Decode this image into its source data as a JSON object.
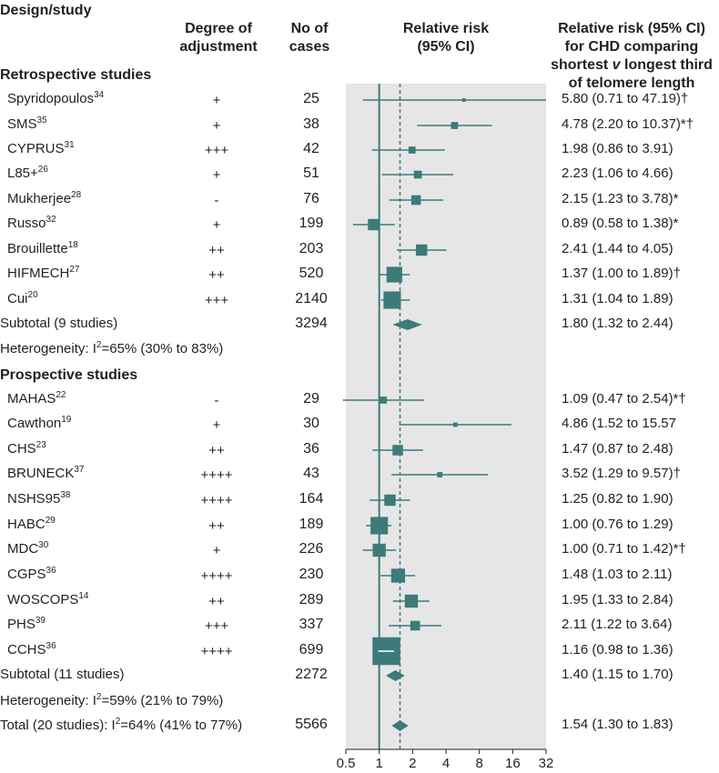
{
  "headers": {
    "design": "Design/study",
    "adjustment": "Degree of\nadjustment",
    "cases": "No of\ncases",
    "rr": "Relative risk\n(95% CI)",
    "rr_detail": "Relative risk (95% CI)\nfor CHD comparing\nshortest v longest third\nof telomere length"
  },
  "sections": {
    "retro": "Retrospective studies",
    "prosp": "Prospective studies"
  },
  "colors": {
    "accent": "#3d7a7a",
    "shade": "#e6e6e6"
  },
  "chart_data": {
    "type": "forest",
    "xscale": "log2",
    "xlim": [
      0.5,
      32
    ],
    "xticks": [
      "0.5",
      "1",
      "2",
      "4",
      "8",
      "16",
      "32"
    ],
    "xtick_values": [
      0.5,
      1,
      2,
      4,
      8,
      16,
      32
    ],
    "reference_line": 1,
    "pooled_line": 1.54,
    "retrospective": [
      {
        "study": "Spyridopoulos",
        "ref": "34",
        "adjustment": "+",
        "cases": "25",
        "rr": 5.8,
        "lo": 0.71,
        "hi": 47.19,
        "ci_text": "5.80 (0.71 to 47.19)†",
        "weight": 1
      },
      {
        "study": "SMS",
        "ref": "35",
        "adjustment": "+",
        "cases": "38",
        "rr": 4.78,
        "lo": 2.2,
        "hi": 10.37,
        "ci_text": "4.78 (2.20 to 10.37)*†",
        "weight": 3
      },
      {
        "study": "CYPRUS",
        "ref": "31",
        "adjustment": "+++",
        "cases": "42",
        "rr": 1.98,
        "lo": 0.86,
        "hi": 3.91,
        "ci_text": "1.98 (0.86 to 3.91)",
        "weight": 3
      },
      {
        "study": "L85+",
        "ref": "26",
        "adjustment": "+",
        "cases": "51",
        "rr": 2.23,
        "lo": 1.06,
        "hi": 4.66,
        "ci_text": "2.23 (1.06 to 4.66)",
        "weight": 3.5
      },
      {
        "study": "Mukherjee",
        "ref": "28",
        "adjustment": "-",
        "cases": "76",
        "rr": 2.15,
        "lo": 1.23,
        "hi": 3.78,
        "ci_text": "2.15 (1.23 to 3.78)*",
        "weight": 4.5
      },
      {
        "study": "Russo",
        "ref": "32",
        "adjustment": "+",
        "cases": "199",
        "rr": 0.89,
        "lo": 0.58,
        "hi": 1.38,
        "ci_text": "0.89 (0.58 to 1.38)*",
        "weight": 5.5
      },
      {
        "study": "Brouillette",
        "ref": "18",
        "adjustment": "++",
        "cases": "203",
        "rr": 2.41,
        "lo": 1.44,
        "hi": 4.05,
        "ci_text": "2.41 (1.44 to 4.05)",
        "weight": 5.5
      },
      {
        "study": "HIFMECH",
        "ref": "27",
        "adjustment": "++",
        "cases": "520",
        "rr": 1.37,
        "lo": 1.0,
        "hi": 1.89,
        "ci_text": "1.37 (1.00 to 1.89)†",
        "weight": 8
      },
      {
        "study": "Cui",
        "ref": "20",
        "adjustment": "+++",
        "cases": "2140",
        "rr": 1.31,
        "lo": 1.04,
        "hi": 1.89,
        "ci_text": "1.31 (1.04 to 1.89)",
        "weight": 9
      }
    ],
    "retro_subtotal": {
      "label": "Subtotal (9 studies)",
      "cases": "3294",
      "rr": 1.8,
      "lo": 1.32,
      "hi": 2.44,
      "ci_text": "1.80 (1.32 to 2.44)"
    },
    "retro_het": "Heterogeneity: I²=65% (30% to 83%)",
    "prospective": [
      {
        "study": "MAHAS",
        "ref": "22",
        "adjustment": "-",
        "cases": "29",
        "rr": 1.09,
        "lo": 0.47,
        "hi": 2.54,
        "ci_text": "1.09 (0.47 to 2.54)*†",
        "weight": 3
      },
      {
        "study": "Cawthon",
        "ref": "19",
        "adjustment": "+",
        "cases": "30",
        "rr": 4.86,
        "lo": 1.52,
        "hi": 15.57,
        "ci_text": "4.86 (1.52 to 15.57",
        "weight": 1.5
      },
      {
        "study": "CHS",
        "ref": "23",
        "adjustment": "++",
        "cases": "36",
        "rr": 1.47,
        "lo": 0.87,
        "hi": 2.48,
        "ci_text": "1.47 (0.87 to 2.48)",
        "weight": 5
      },
      {
        "study": "BRUNECK",
        "ref": "37",
        "adjustment": "++++",
        "cases": "43",
        "rr": 3.52,
        "lo": 1.29,
        "hi": 9.57,
        "ci_text": "3.52 (1.29 to 9.57)†",
        "weight": 2
      },
      {
        "study": "NSHS95",
        "ref": "38",
        "adjustment": "++++",
        "cases": "164",
        "rr": 1.25,
        "lo": 0.82,
        "hi": 1.9,
        "ci_text": "1.25 (0.82 to 1.90)",
        "weight": 5.5
      },
      {
        "study": "HABC",
        "ref": "29",
        "adjustment": "++",
        "cases": "189",
        "rr": 1.0,
        "lo": 0.76,
        "hi": 1.29,
        "ci_text": "1.00 (0.76 to 1.29)",
        "weight": 9
      },
      {
        "study": "MDC",
        "ref": "30",
        "adjustment": "+",
        "cases": "226",
        "rr": 1.0,
        "lo": 0.71,
        "hi": 1.42,
        "ci_text": "1.00 (0.71 to 1.42)*†",
        "weight": 6.5
      },
      {
        "study": "CGPS",
        "ref": "36",
        "adjustment": "++++",
        "cases": "230",
        "rr": 1.48,
        "lo": 1.03,
        "hi": 2.11,
        "ci_text": "1.48 (1.03 to 2.11)",
        "weight": 7
      },
      {
        "study": "WOSCOPS",
        "ref": "14",
        "adjustment": "++",
        "cases": "289",
        "rr": 1.95,
        "lo": 1.33,
        "hi": 2.84,
        "ci_text": "1.95 (1.33 to 2.84)",
        "weight": 6.5
      },
      {
        "study": "PHS",
        "ref": "39",
        "adjustment": "+++",
        "cases": "337",
        "rr": 2.11,
        "lo": 1.22,
        "hi": 3.64,
        "ci_text": "2.11 (1.22 to 3.64)",
        "weight": 4.5
      },
      {
        "study": "CCHS",
        "ref": "36",
        "adjustment": "++++",
        "cases": "699",
        "rr": 1.16,
        "lo": 0.98,
        "hi": 1.36,
        "ci_text": "1.16 (0.98 to 1.36)",
        "weight": 15
      }
    ],
    "prosp_subtotal": {
      "label": "Subtotal (11 studies)",
      "cases": "2272",
      "rr": 1.4,
      "lo": 1.15,
      "hi": 1.7,
      "ci_text": "1.40 (1.15 to 1.70)"
    },
    "prosp_het": "Heterogeneity: I²=59% (21% to 79%)",
    "total": {
      "label": "Total (20 studies): I²=64% (41% to 77%)",
      "cases": "5566",
      "rr": 1.54,
      "lo": 1.3,
      "hi": 1.83,
      "ci_text": "1.54 (1.30 to 1.83)"
    }
  }
}
